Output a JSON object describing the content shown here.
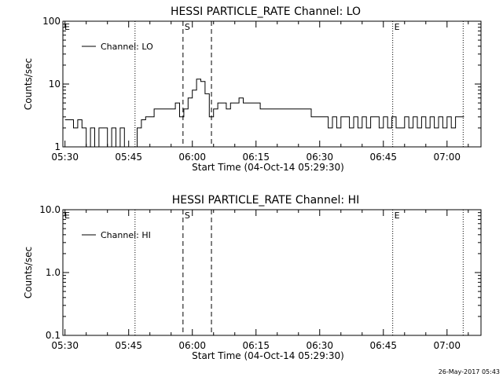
{
  "timestamp": "26-May-2017 05:43",
  "chart_data": [
    {
      "type": "line",
      "title": "HESSI PARTICLE_RATE Channel: LO",
      "xlabel": "Start Time (04-Oct-14 05:29:30)",
      "ylabel": "Counts/sec",
      "yscale": "log",
      "ylim": [
        1,
        100
      ],
      "yticks": [
        {
          "value": 1,
          "label": "1"
        },
        {
          "value": 10,
          "label": "10"
        },
        {
          "value": 100,
          "label": "100"
        }
      ],
      "xlim_minutes": [
        -0.5,
        98
      ],
      "xticks": [
        {
          "value": 0,
          "label": "05:30"
        },
        {
          "value": 15,
          "label": "05:45"
        },
        {
          "value": 30,
          "label": "06:00"
        },
        {
          "value": 45,
          "label": "06:15"
        },
        {
          "value": 60,
          "label": "06:30"
        },
        {
          "value": 75,
          "label": "06:45"
        },
        {
          "value": 90,
          "label": "07:00"
        }
      ],
      "legend": {
        "label": "Channel: LO",
        "position": "top-left"
      },
      "markers": [
        {
          "minute": -0.5,
          "style": "dotted",
          "label": "E"
        },
        {
          "minute": 16.5,
          "style": "dotted",
          "label": ""
        },
        {
          "minute": 27.8,
          "style": "dashed",
          "label": "S"
        },
        {
          "minute": 34.5,
          "style": "dashed",
          "label": ""
        },
        {
          "minute": 77.2,
          "style": "dotted",
          "label": "E"
        },
        {
          "minute": 93.8,
          "style": "dotted",
          "label": ""
        }
      ],
      "series": [
        {
          "name": "Channel: LO",
          "x": [
            0,
            1,
            2,
            3,
            4,
            5,
            6,
            7,
            8,
            9,
            10,
            11,
            12,
            13,
            14,
            15,
            16,
            17,
            18,
            19,
            20,
            21,
            22,
            23,
            24,
            25,
            26,
            27,
            28,
            29,
            30,
            31,
            32,
            33,
            34,
            35,
            36,
            37,
            38,
            39,
            40,
            41,
            42,
            43,
            44,
            45,
            46,
            47,
            48,
            49,
            50,
            51,
            52,
            53,
            54,
            55,
            56,
            57,
            58,
            59,
            60,
            61,
            62,
            63,
            64,
            65,
            66,
            67,
            68,
            69,
            70,
            71,
            72,
            73,
            74,
            75,
            76,
            77,
            78,
            79,
            80,
            81,
            82,
            83,
            84,
            85,
            86,
            87,
            88,
            89,
            90,
            91,
            92,
            93
          ],
          "y": [
            2.7,
            2.7,
            2,
            2.7,
            2,
            1,
            2,
            1,
            2,
            2,
            1,
            2,
            1,
            2,
            1,
            1,
            1,
            2,
            2.7,
            3,
            3,
            4,
            4,
            4,
            4,
            4,
            5,
            3,
            4,
            6,
            8,
            12,
            11,
            7,
            3,
            4,
            5,
            5,
            4,
            5,
            5,
            6,
            5,
            5,
            5,
            5,
            4,
            4,
            4,
            4,
            4,
            4,
            4,
            4,
            4,
            4,
            4,
            4,
            3,
            3,
            3,
            3,
            2,
            3,
            2,
            3,
            3,
            2,
            3,
            2,
            3,
            2,
            3,
            3,
            2,
            3,
            2,
            3,
            2,
            2,
            3,
            2,
            3,
            2,
            3,
            2,
            3,
            2,
            3,
            2,
            3,
            2,
            3,
            3
          ]
        }
      ]
    },
    {
      "type": "line",
      "title": "HESSI PARTICLE_RATE Channel: HI",
      "xlabel": "Start Time (04-Oct-14 05:29:30)",
      "ylabel": "Counts/sec",
      "yscale": "log",
      "ylim": [
        0.1,
        10
      ],
      "yticks": [
        {
          "value": 0.1,
          "label": "0.1"
        },
        {
          "value": 1,
          "label": "1.0"
        },
        {
          "value": 10,
          "label": "10.0"
        }
      ],
      "xlim_minutes": [
        -0.5,
        98
      ],
      "xticks": [
        {
          "value": 0,
          "label": "05:30"
        },
        {
          "value": 15,
          "label": "05:45"
        },
        {
          "value": 30,
          "label": "06:00"
        },
        {
          "value": 45,
          "label": "06:15"
        },
        {
          "value": 60,
          "label": "06:30"
        },
        {
          "value": 75,
          "label": "06:45"
        },
        {
          "value": 90,
          "label": "07:00"
        }
      ],
      "legend": {
        "label": "Channel: HI",
        "position": "top-left"
      },
      "markers": [
        {
          "minute": -0.5,
          "style": "dotted",
          "label": "E"
        },
        {
          "minute": 16.5,
          "style": "dotted",
          "label": ""
        },
        {
          "minute": 27.8,
          "style": "dashed",
          "label": "S"
        },
        {
          "minute": 34.5,
          "style": "dashed",
          "label": ""
        },
        {
          "minute": 77.2,
          "style": "dotted",
          "label": "E"
        },
        {
          "minute": 93.8,
          "style": "dotted",
          "label": ""
        }
      ],
      "series": [
        {
          "name": "Channel: HI",
          "x": [],
          "y": []
        }
      ]
    }
  ]
}
